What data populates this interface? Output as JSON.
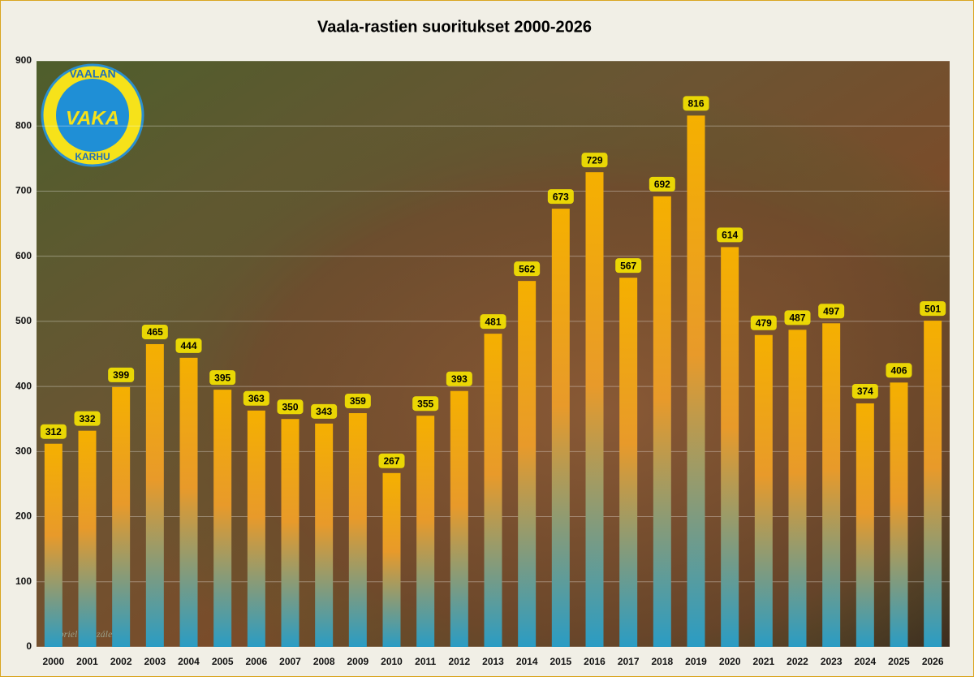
{
  "chart_data": {
    "type": "bar",
    "title": "Vaala-rastien  suoritukset 2000-2026",
    "categories": [
      "2000",
      "2001",
      "2002",
      "2003",
      "2004",
      "2005",
      "2006",
      "2007",
      "2008",
      "2009",
      "2010",
      "2011",
      "2012",
      "2013",
      "2014",
      "2015",
      "2016",
      "2017",
      "2018",
      "2019",
      "2020",
      "2021",
      "2022",
      "2023",
      "2024",
      "2025",
      "2026"
    ],
    "values": [
      312,
      332,
      399,
      465,
      444,
      395,
      363,
      350,
      343,
      359,
      267,
      355,
      393,
      481,
      562,
      673,
      729,
      567,
      692,
      816,
      614,
      479,
      487,
      497,
      374,
      406,
      501
    ],
    "color": "#f5b000",
    "ylim": [
      0,
      900
    ],
    "yticks": [
      0,
      100,
      200,
      300,
      400,
      500,
      600,
      700,
      800,
      900
    ],
    "grid": true,
    "annotations": [
      "VAALAN",
      "VAKA",
      "KARHU",
      "Gabriel González"
    ]
  }
}
